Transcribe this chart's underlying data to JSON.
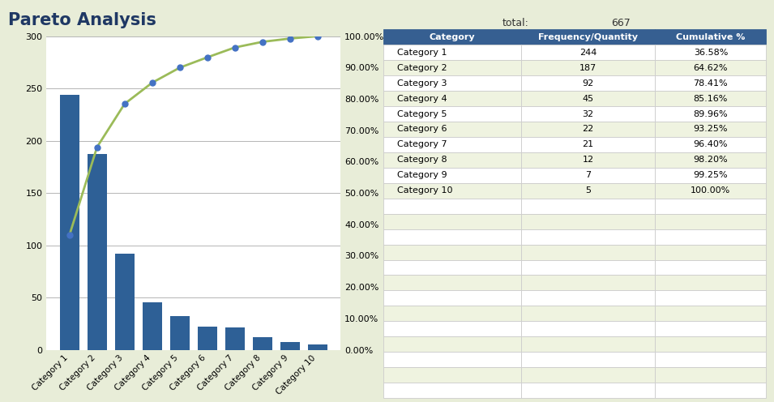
{
  "title": "Pareto Analysis",
  "categories": [
    "Category 1",
    "Category 2",
    "Category 3",
    "Category 4",
    "Category 5",
    "Category 6",
    "Category 7",
    "Category 8",
    "Category 9",
    "Category 10"
  ],
  "frequencies": [
    244,
    187,
    92,
    45,
    32,
    22,
    21,
    12,
    7,
    5
  ],
  "cumulative_pct": [
    36.58,
    64.62,
    78.41,
    85.16,
    89.96,
    93.25,
    96.4,
    98.2,
    99.25,
    100.0
  ],
  "total": 667,
  "bar_color": "#2E6096",
  "line_color": "#9BBB59",
  "line_marker_color": "#4472C4",
  "bg_color": "#E8EDD8",
  "chart_bg": "#FFFFFF",
  "table_header_bg": "#365F91",
  "table_header_fg": "#FFFFFF",
  "table_row_odd_bg": "#FFFFFF",
  "table_row_even_bg": "#EFF3E0",
  "table_border_color": "#365F91",
  "title_fontsize": 15,
  "ylim_left": [
    0,
    300
  ],
  "ylim_right": [
    0,
    100
  ],
  "yticks_left": [
    0,
    50,
    100,
    150,
    200,
    250,
    300
  ],
  "yticks_right": [
    0,
    10,
    20,
    30,
    40,
    50,
    60,
    70,
    80,
    90,
    100
  ],
  "total_label": "total:",
  "col_headers": [
    "Category",
    "Frequency/Quantity",
    "Cumulative %"
  ],
  "n_extra_rows": 13
}
